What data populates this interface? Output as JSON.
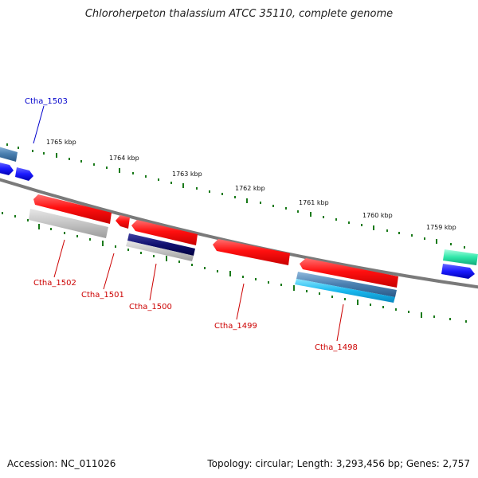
{
  "header": {
    "title": "Chloroherpeton thalassium ATCC 35110, complete genome"
  },
  "footer": {
    "accession": "Accession: NC_011026",
    "summary": "Topology: circular; Length: 3,293,456 bp; Genes: 2,757"
  },
  "scale_ticks": [
    "1765 kbp",
    "1764 kbp",
    "1763 kbp",
    "1762 kbp",
    "1761 kbp",
    "1760 kbp",
    "1759 kbp"
  ],
  "gene_labels": {
    "ctha_1503": "Ctha_1503",
    "ctha_1502": "Ctha_1502",
    "ctha_1501": "Ctha_1501",
    "ctha_1500": "Ctha_1500",
    "ctha_1499": "Ctha_1499",
    "ctha_1498": "Ctha_1498"
  },
  "colors": {
    "backbone": "#7a7a7a",
    "tick": "#1a7a1a",
    "cds": "#ff1a1a",
    "gene_label_reverse": "#cc0000",
    "gene_label_forward": "#0000cc",
    "forward_gene": "#1a1aff",
    "gray_feature": "#bdbdbd",
    "navy_feature": "#101070",
    "steel_feature": "#4a7fb0",
    "cyan_feature": "#19b8ee",
    "teal_feature": "#2ee6a8"
  }
}
